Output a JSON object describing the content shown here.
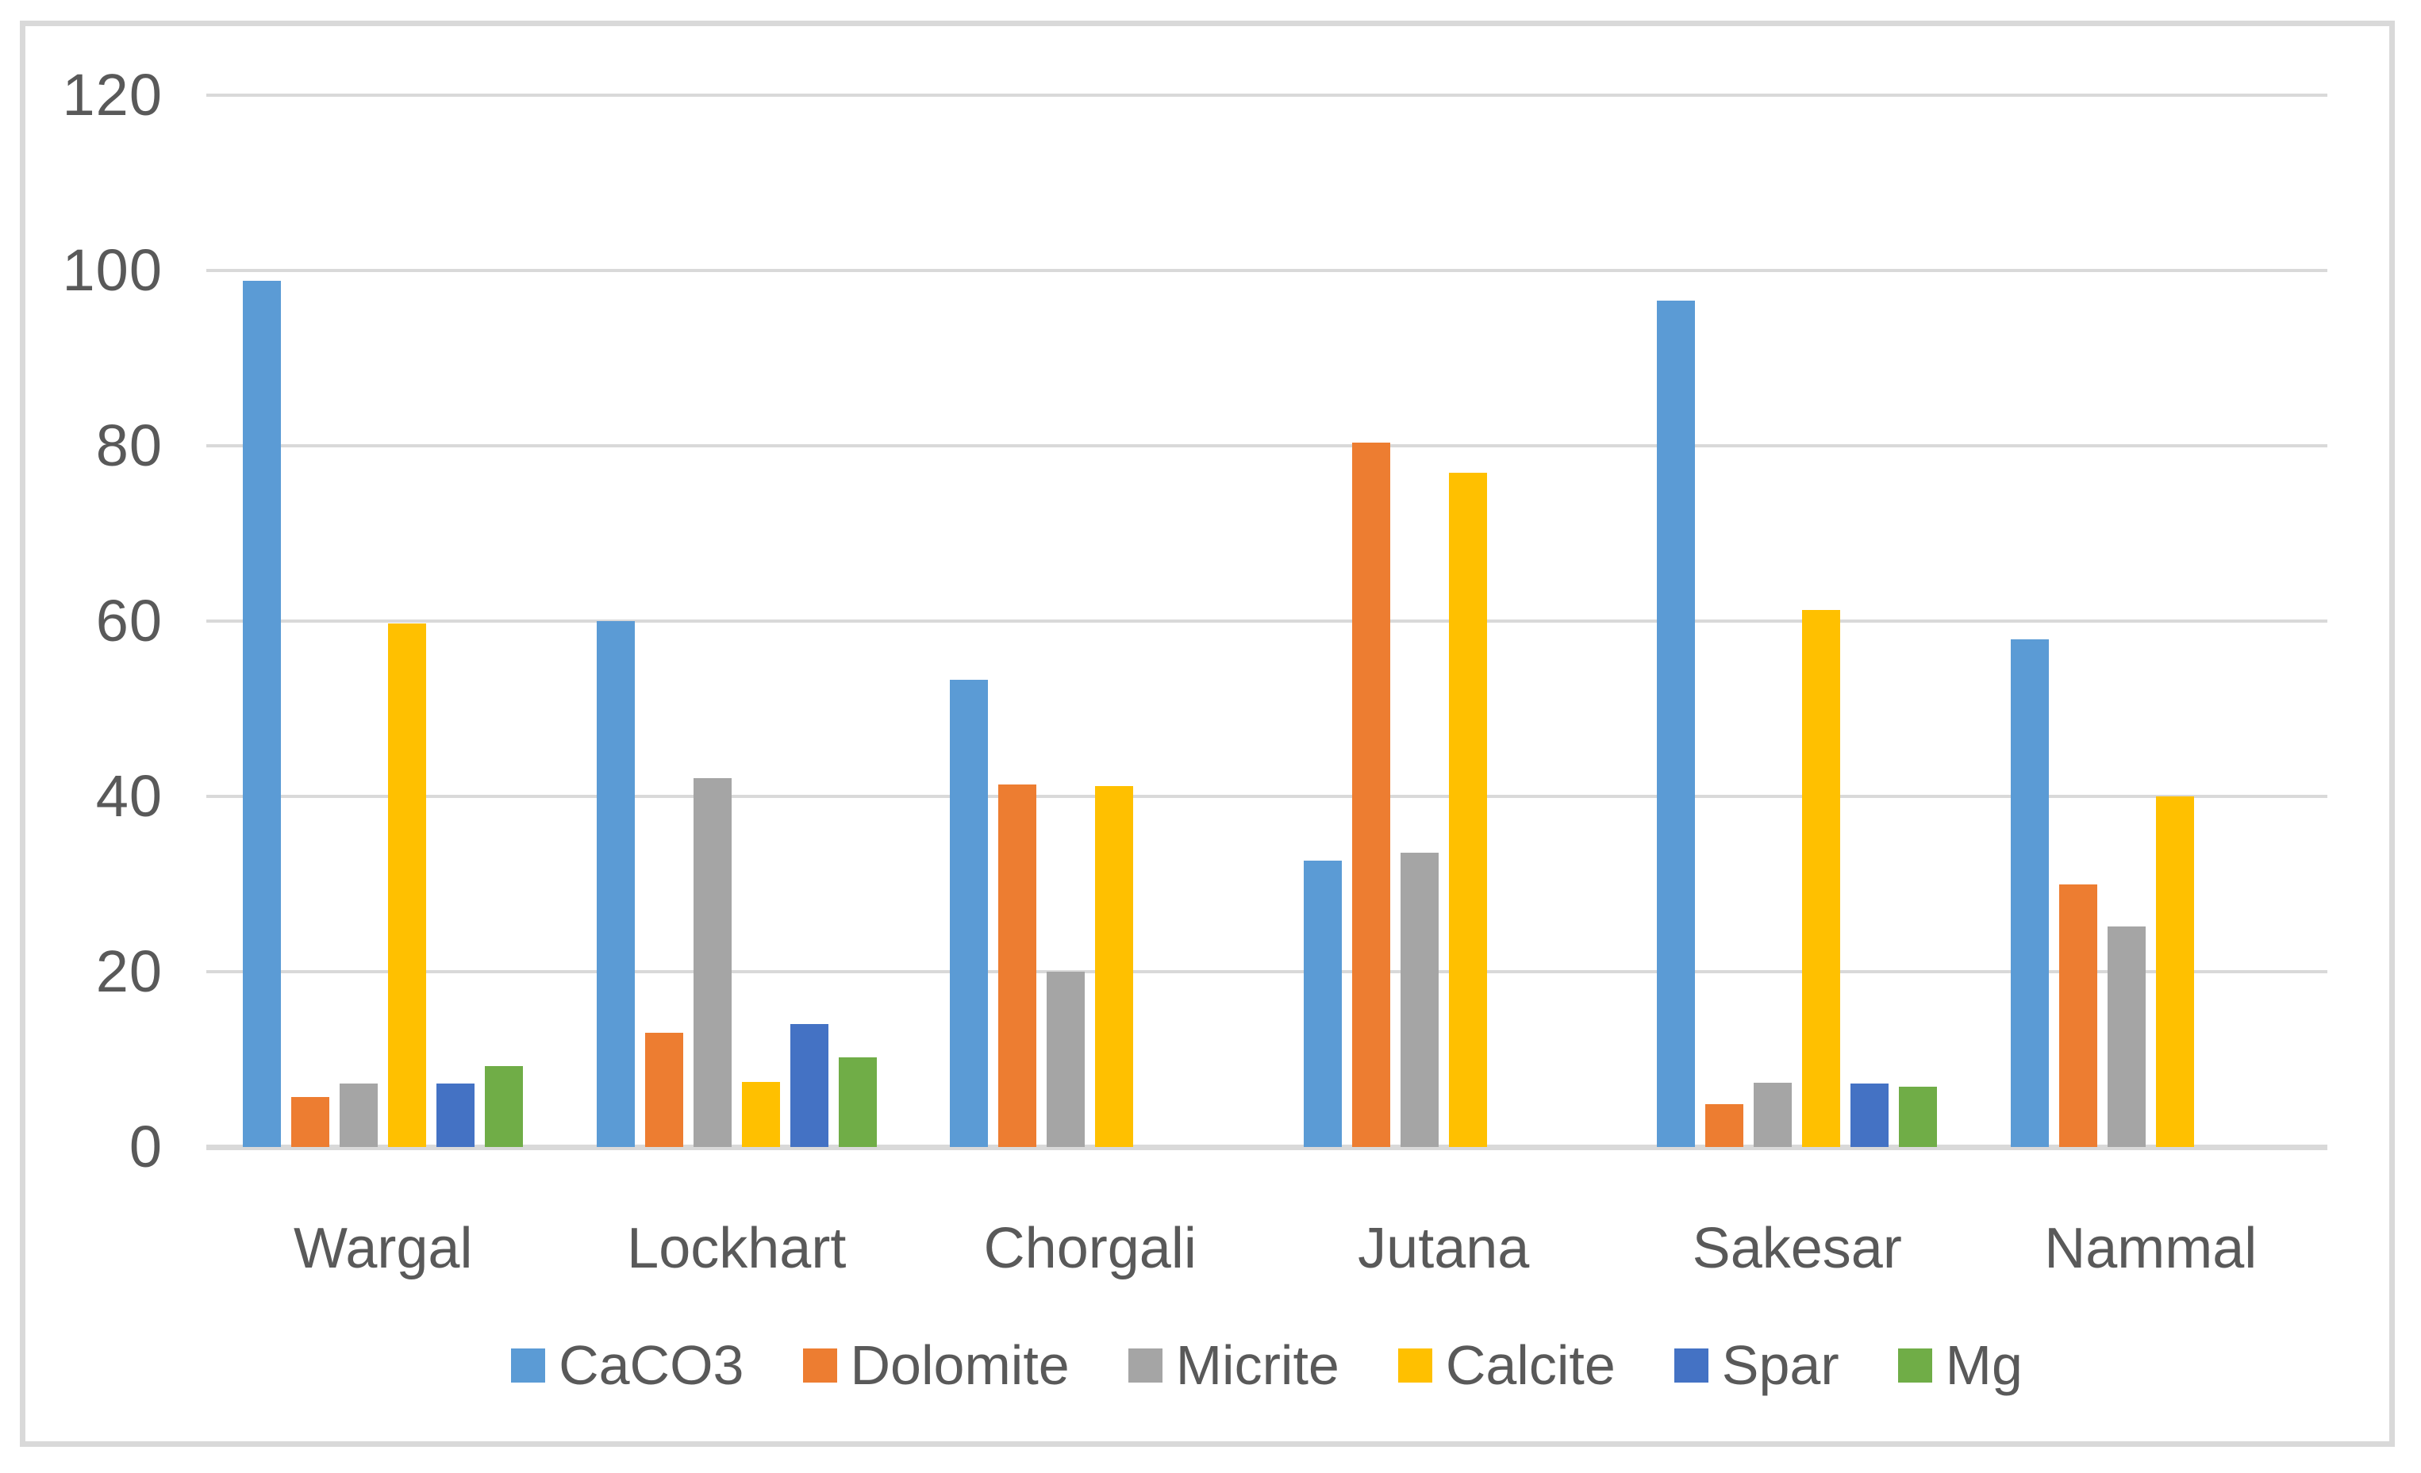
{
  "chart_data": {
    "type": "bar",
    "title": "",
    "categories": [
      "Wargal",
      "Lockhart",
      "Chorgali",
      "Jutana",
      "Sakesar",
      "Nammal"
    ],
    "series": [
      {
        "name": "CaCO3",
        "color": "#5B9BD5",
        "values": [
          98.8,
          60.0,
          53.3,
          32.7,
          96.6,
          57.9
        ]
      },
      {
        "name": "Dolomite",
        "color": "#ED7D31",
        "values": [
          5.7,
          13.0,
          41.4,
          80.4,
          4.9,
          30.0
        ]
      },
      {
        "name": "Micrite",
        "color": "#A5A5A5",
        "values": [
          7.2,
          42.1,
          20.0,
          33.6,
          7.3,
          25.2
        ]
      },
      {
        "name": "Calcite",
        "color": "#FFC000",
        "values": [
          59.7,
          7.4,
          41.2,
          76.9,
          61.3,
          40.0
        ]
      },
      {
        "name": "Spar",
        "color": "#4472C4",
        "values": [
          7.2,
          14.0,
          0,
          0,
          7.2,
          0
        ]
      },
      {
        "name": "Mg",
        "color": "#70AD47",
        "values": [
          9.2,
          10.2,
          0,
          0,
          6.9,
          0
        ]
      }
    ],
    "xlabel": "",
    "ylabel": "",
    "ylim": [
      0,
      120
    ],
    "yticks": [
      0,
      20,
      40,
      60,
      80,
      100,
      120
    ],
    "grid": true,
    "legend_position": "bottom"
  },
  "style": {
    "axis_text_color": "#595959",
    "gridline_color": "#D9D9D9",
    "border_color": "#D9D9D9",
    "background_color": "#FFFFFF"
  }
}
